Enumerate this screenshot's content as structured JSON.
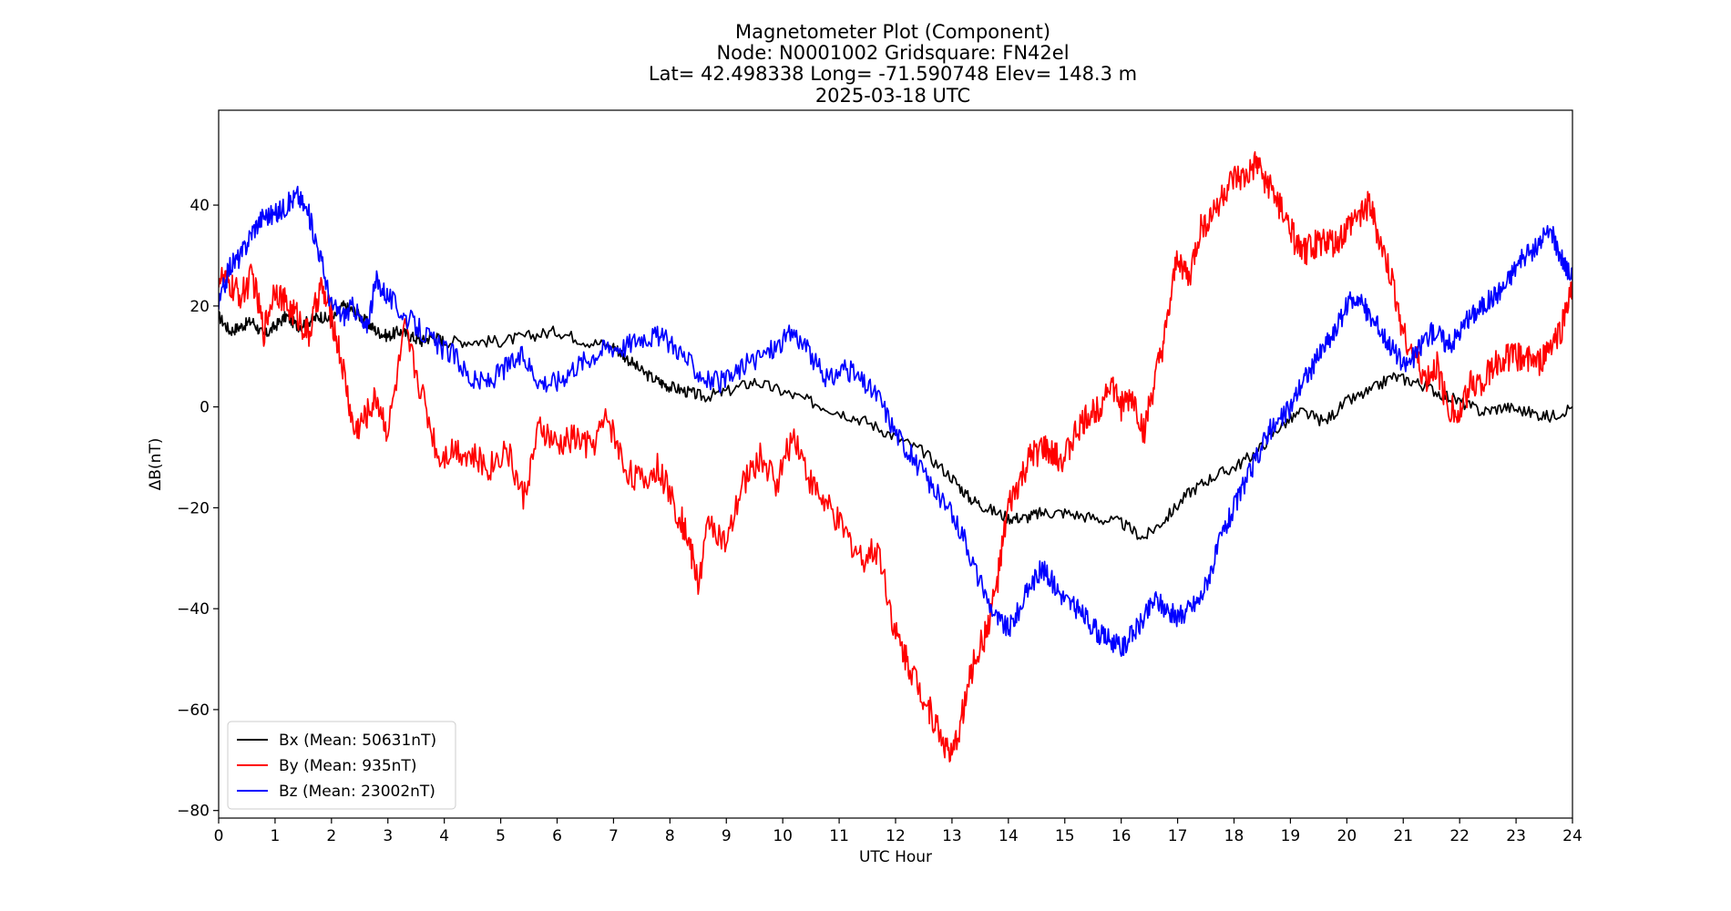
{
  "chart_data": {
    "type": "line",
    "title_lines": [
      "Magnetometer Plot (Component)",
      "Node:  N0001002     Gridsquare:  FN42el",
      "Lat= 42.498338    Long= -71.590748    Elev= 148.3 m",
      "2025-03-18  UTC"
    ],
    "xlabel": "UTC Hour",
    "ylabel": "ΔB(nT)",
    "xlim": [
      0,
      24
    ],
    "ylim": [
      -81.5,
      58.8
    ],
    "xticks": [
      0,
      1,
      2,
      3,
      4,
      5,
      6,
      7,
      8,
      9,
      10,
      11,
      12,
      13,
      14,
      15,
      16,
      17,
      18,
      19,
      20,
      21,
      22,
      23,
      24
    ],
    "yticks": [
      40,
      20,
      0,
      -20,
      -40,
      -60,
      -80
    ],
    "ytick_labels": [
      "40",
      "20",
      "0",
      "−20",
      "−40",
      "−60",
      "−80"
    ],
    "legend_position": "lower-left",
    "series": [
      {
        "name": "Bx",
        "label": "Bx (Mean: 50631nT)",
        "color": "#000000",
        "x": [
          0,
          0.2,
          0.4,
          0.6,
          0.8,
          1,
          1.2,
          1.4,
          1.6,
          1.8,
          2,
          2.2,
          2.4,
          2.6,
          2.8,
          3,
          3.2,
          3.4,
          3.6,
          3.8,
          4,
          4.5,
          5,
          5.5,
          6,
          6.5,
          7,
          7.2,
          7.5,
          7.8,
          8,
          8.3,
          8.6,
          9,
          9.5,
          10,
          10.5,
          11,
          11.5,
          12,
          12.5,
          13,
          13.3,
          13.6,
          14,
          14.3,
          14.6,
          15,
          15.5,
          16,
          16.4,
          16.8,
          17.2,
          17.6,
          18,
          18.4,
          18.8,
          19.2,
          19.6,
          20,
          20.4,
          20.8,
          21.2,
          21.6,
          22,
          22.4,
          22.8,
          23.2,
          23.6,
          24
        ],
        "y": [
          18,
          15,
          16,
          17,
          14,
          16,
          18,
          16,
          17,
          18,
          17,
          20,
          19,
          17,
          15,
          14,
          15,
          14,
          13,
          14,
          13,
          13,
          13,
          14,
          15,
          13,
          12,
          10,
          7,
          5,
          4,
          3,
          2,
          3,
          5,
          3,
          1,
          -1,
          -3,
          -6,
          -9,
          -14,
          -18,
          -20,
          -22,
          -22,
          -21,
          -21,
          -22,
          -23,
          -26,
          -22,
          -17,
          -14,
          -12,
          -9,
          -4,
          -1,
          -3,
          1,
          3,
          6,
          5,
          3,
          1,
          -1,
          0,
          -1,
          -2,
          0
        ]
      },
      {
        "name": "By",
        "label": "By (Mean: 935nT)",
        "color": "#ff0000",
        "x": [
          0,
          0.2,
          0.4,
          0.6,
          0.8,
          1,
          1.2,
          1.4,
          1.6,
          1.8,
          2,
          2.2,
          2.4,
          2.6,
          2.8,
          3,
          3.3,
          3.6,
          3.9,
          4.2,
          4.5,
          4.8,
          5.1,
          5.4,
          5.7,
          6,
          6.3,
          6.6,
          6.9,
          7.2,
          7.5,
          7.8,
          8.1,
          8.3,
          8.5,
          8.7,
          9,
          9.3,
          9.6,
          9.9,
          10.2,
          10.5,
          10.8,
          11.1,
          11.4,
          11.7,
          12,
          12.2,
          12.4,
          12.6,
          12.8,
          13,
          13.2,
          13.4,
          13.6,
          13.8,
          14,
          14.2,
          14.4,
          14.6,
          14.8,
          15,
          15.2,
          15.4,
          15.6,
          15.8,
          16,
          16.2,
          16.4,
          16.6,
          16.8,
          17,
          17.2,
          17.4,
          17.6,
          17.8,
          18,
          18.2,
          18.4,
          18.6,
          18.8,
          19,
          19.2,
          19.4,
          19.6,
          19.8,
          20,
          20.2,
          20.4,
          20.6,
          20.8,
          21,
          21.2,
          21.4,
          21.6,
          21.8,
          22,
          22.2,
          22.4,
          22.6,
          22.8,
          23,
          23.2,
          23.4,
          23.6,
          23.8,
          24
        ],
        "y": [
          26,
          24,
          22,
          26,
          15,
          24,
          20,
          18,
          14,
          24,
          18,
          8,
          -5,
          -2,
          2,
          -5,
          15,
          3,
          -10,
          -8,
          -10,
          -12,
          -8,
          -18,
          -4,
          -8,
          -6,
          -8,
          -2,
          -12,
          -15,
          -12,
          -20,
          -25,
          -35,
          -22,
          -28,
          -15,
          -10,
          -15,
          -5,
          -15,
          -20,
          -25,
          -30,
          -28,
          -45,
          -50,
          -55,
          -60,
          -65,
          -70,
          -60,
          -50,
          -45,
          -35,
          -20,
          -15,
          -10,
          -8,
          -10,
          -10,
          -5,
          -2,
          0,
          5,
          0,
          2,
          -5,
          5,
          15,
          30,
          25,
          35,
          38,
          42,
          45,
          45,
          48,
          44,
          40,
          35,
          30,
          32,
          33,
          32,
          35,
          38,
          40,
          32,
          25,
          15,
          10,
          5,
          8,
          0,
          -2,
          5,
          5,
          8,
          10,
          10,
          10,
          8,
          12,
          15,
          25
        ]
      },
      {
        "name": "Bz",
        "label": "Bz (Mean: 23002nT)",
        "color": "#0000ff",
        "x": [
          0,
          0.2,
          0.4,
          0.6,
          0.8,
          1,
          1.2,
          1.4,
          1.6,
          1.8,
          2,
          2.2,
          2.4,
          2.6,
          2.8,
          3,
          3.3,
          3.6,
          3.9,
          4.2,
          4.5,
          4.8,
          5.1,
          5.4,
          5.7,
          6,
          6.3,
          6.6,
          6.9,
          7.2,
          7.5,
          7.8,
          8.1,
          8.4,
          8.7,
          9,
          9.3,
          9.6,
          9.9,
          10.2,
          10.5,
          10.8,
          11.1,
          11.4,
          11.7,
          12,
          12.3,
          12.6,
          12.9,
          13.2,
          13.5,
          13.8,
          14,
          14.2,
          14.4,
          14.6,
          14.8,
          15,
          15.2,
          15.4,
          15.6,
          15.8,
          16,
          16.2,
          16.4,
          16.6,
          16.8,
          17,
          17.2,
          17.4,
          17.6,
          17.8,
          18,
          18.2,
          18.4,
          18.6,
          18.8,
          19,
          19.2,
          19.4,
          19.6,
          19.8,
          20,
          20.2,
          20.4,
          20.6,
          20.8,
          21,
          21.2,
          21.4,
          21.6,
          21.8,
          22,
          22.2,
          22.4,
          22.6,
          22.8,
          23,
          23.2,
          23.4,
          23.6,
          23.8,
          24
        ],
        "y": [
          20,
          28,
          30,
          35,
          38,
          38,
          40,
          42,
          38,
          30,
          20,
          18,
          20,
          15,
          25,
          22,
          18,
          15,
          12,
          10,
          5,
          5,
          8,
          10,
          5,
          5,
          8,
          10,
          12,
          12,
          14,
          14,
          12,
          8,
          5,
          5,
          8,
          10,
          12,
          15,
          10,
          5,
          8,
          5,
          2,
          -5,
          -10,
          -15,
          -20,
          -25,
          -35,
          -42,
          -44,
          -40,
          -35,
          -32,
          -35,
          -38,
          -40,
          -42,
          -45,
          -46,
          -48,
          -45,
          -42,
          -38,
          -40,
          -42,
          -40,
          -38,
          -32,
          -25,
          -20,
          -15,
          -10,
          -5,
          -3,
          0,
          5,
          8,
          12,
          15,
          20,
          22,
          18,
          15,
          12,
          8,
          10,
          14,
          15,
          12,
          15,
          18,
          20,
          22,
          24,
          28,
          30,
          32,
          35,
          30,
          25
        ]
      }
    ]
  }
}
